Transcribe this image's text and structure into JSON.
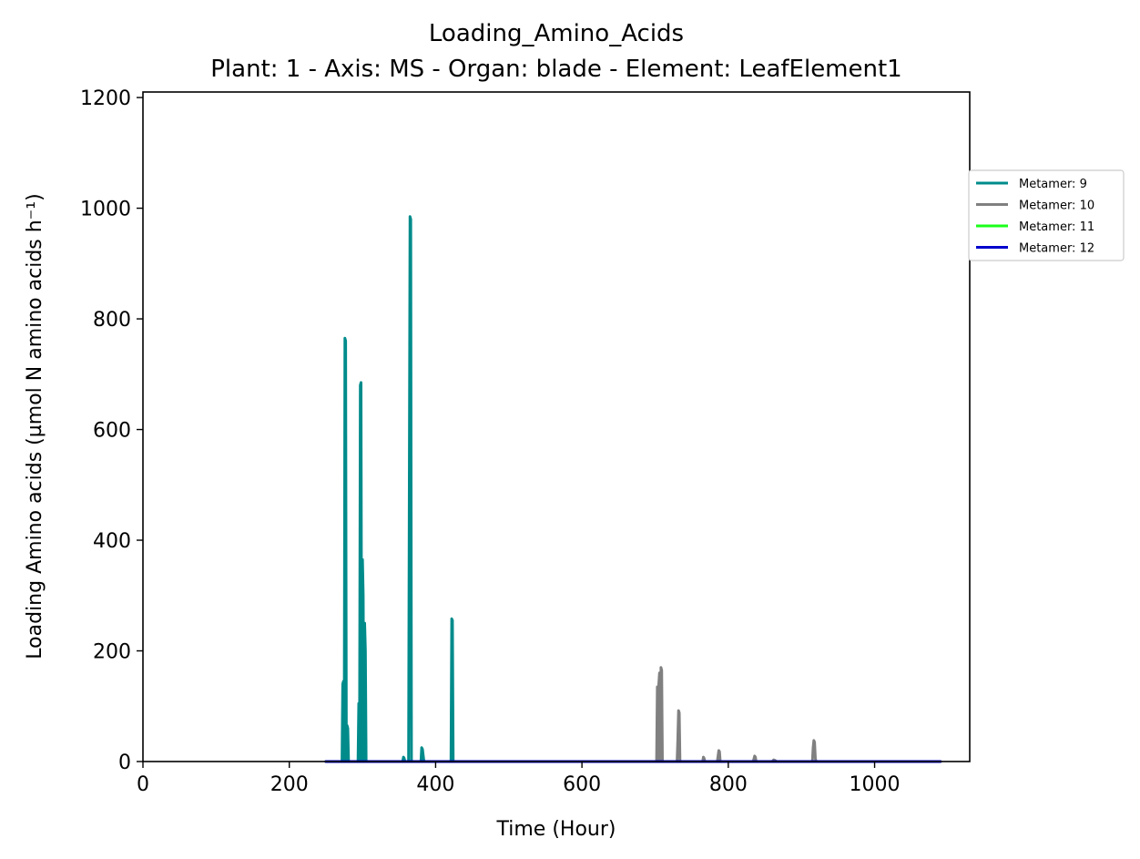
{
  "chart_data": {
    "type": "line",
    "title": "Loading_Amino_Acids",
    "subtitle": "Plant: 1 - Axis: MS - Organ: blade - Element: LeafElement1",
    "xlabel": "Time (Hour)",
    "ylabel": "Loading Amino acids (µmol N amino acids h⁻¹)",
    "xlim": [
      0,
      1130
    ],
    "ylim": [
      0,
      1210
    ],
    "xticks": [
      "0",
      "200",
      "400",
      "600",
      "800",
      "1000"
    ],
    "yticks": [
      "0",
      "200",
      "400",
      "600",
      "800",
      "1000",
      "1200"
    ],
    "legend_position": "upper-right-outside",
    "grid": false,
    "series": [
      {
        "name": "Metamer: 9",
        "color": "#008b8b",
        "x": [
          250,
          272,
          273,
          274,
          275,
          276,
          277,
          278,
          279,
          280,
          281,
          282,
          284,
          286,
          294,
          295,
          296,
          297,
          298,
          299,
          300,
          301,
          302,
          303,
          304,
          305,
          306,
          308,
          310,
          320,
          355,
          356,
          357,
          358,
          360,
          363,
          364,
          365,
          366,
          367,
          368,
          370,
          378,
          380,
          381,
          382,
          384,
          420,
          421,
          422,
          423,
          424,
          426,
          440
        ],
        "y": [
          0,
          0,
          140,
          145,
          0,
          765,
          760,
          0,
          65,
          60,
          0,
          0,
          0,
          0,
          0,
          105,
          0,
          680,
          685,
          0,
          365,
          300,
          0,
          250,
          200,
          0,
          0,
          0,
          0,
          0,
          0,
          8,
          6,
          0,
          0,
          0,
          500,
          985,
          980,
          0,
          0,
          0,
          0,
          0,
          25,
          22,
          0,
          0,
          0,
          258,
          255,
          0,
          0,
          0
        ]
      },
      {
        "name": "Metamer: 10",
        "color": "#808080",
        "x": [
          440,
          700,
          702,
          703,
          704,
          705,
          706,
          707,
          708,
          709,
          710,
          712,
          730,
          731,
          732,
          733,
          734,
          736,
          765,
          766,
          767,
          768,
          785,
          786,
          787,
          788,
          789,
          834,
          835,
          836,
          837,
          838,
          860,
          862,
          864,
          866,
          915,
          916,
          917,
          918,
          919,
          920,
          1030
        ],
        "y": [
          0,
          0,
          0,
          135,
          0,
          140,
          160,
          0,
          170,
          165,
          0,
          0,
          0,
          40,
          92,
          88,
          0,
          0,
          0,
          8,
          6,
          0,
          0,
          10,
          20,
          18,
          0,
          0,
          5,
          10,
          8,
          0,
          0,
          3,
          2,
          0,
          0,
          25,
          38,
          35,
          5,
          0,
          0
        ]
      },
      {
        "name": "Metamer: 11",
        "color": "#1aff1a",
        "x": [
          700,
          800,
          900,
          1000
        ],
        "y": [
          0,
          0,
          0,
          0
        ]
      },
      {
        "name": "Metamer: 12",
        "color": "#0000cc",
        "x": [
          250,
          1090
        ],
        "y": [
          0,
          0
        ]
      }
    ]
  }
}
